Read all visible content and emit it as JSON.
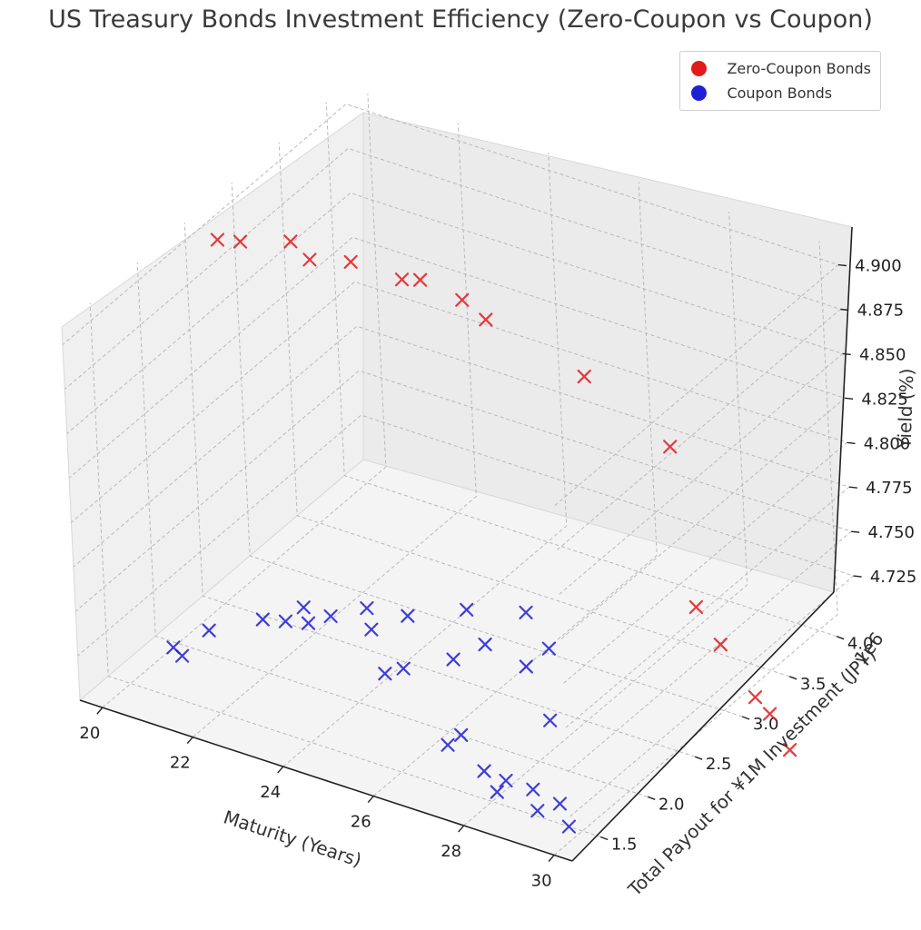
{
  "chart_data": {
    "type": "scatter",
    "title": "US Treasury Bonds Investment Efficiency (Zero-Coupon vs Coupon)",
    "xlabel": "Maturity (Years)",
    "ylabel": "Total Payout for ¥1M Investment (JPY)",
    "ylabel_scale_note": "1e6",
    "zlabel": "Yield (%)",
    "xlim": [
      19.5,
      30.4
    ],
    "ylim": [
      1.2,
      4.2
    ],
    "zlim": [
      4.7,
      4.91
    ],
    "x_ticks": [
      "20",
      "22",
      "24",
      "26",
      "28",
      "30"
    ],
    "y_ticks": [
      "1.5",
      "2.0",
      "2.5",
      "3.0",
      "3.5",
      "4.0"
    ],
    "z_ticks": [
      "4.725",
      "4.750",
      "4.775",
      "4.800",
      "4.825",
      "4.850",
      "4.875",
      "4.900"
    ],
    "grid": true,
    "legend": "top-right",
    "marker": "x",
    "series": [
      {
        "name": "Zero-Coupon Bonds",
        "color": "#e31a1c",
        "points": [
          {
            "x": 20.0,
            "y": 2.6,
            "z": 4.9
          },
          {
            "x": 20.4,
            "y": 2.65,
            "z": 4.9
          },
          {
            "x": 21.2,
            "y": 2.8,
            "z": 4.9
          },
          {
            "x": 21.5,
            "y": 2.85,
            "z": 4.89
          },
          {
            "x": 22.2,
            "y": 2.95,
            "z": 4.89
          },
          {
            "x": 23.0,
            "y": 3.1,
            "z": 4.88
          },
          {
            "x": 23.3,
            "y": 3.15,
            "z": 4.88
          },
          {
            "x": 24.0,
            "y": 3.25,
            "z": 4.87
          },
          {
            "x": 24.4,
            "y": 3.3,
            "z": 4.86
          },
          {
            "x": 26.0,
            "y": 3.55,
            "z": 4.83
          },
          {
            "x": 27.3,
            "y": 3.8,
            "z": 4.79
          },
          {
            "x": 27.6,
            "y": 3.85,
            "z": 4.7
          },
          {
            "x": 28.0,
            "y": 3.9,
            "z": 4.68
          },
          {
            "x": 28.5,
            "y": 4.0,
            "z": 4.65
          },
          {
            "x": 28.7,
            "y": 4.05,
            "z": 4.64
          },
          {
            "x": 29.0,
            "y": 4.1,
            "z": 4.62
          }
        ]
      },
      {
        "name": "Coupon Bonds",
        "color": "#1f1fd6",
        "points": [
          {
            "x": 20.0,
            "y": 1.95,
            "z": 4.7
          },
          {
            "x": 20.3,
            "y": 1.9,
            "z": 4.7
          },
          {
            "x": 20.6,
            "y": 2.05,
            "z": 4.71
          },
          {
            "x": 21.6,
            "y": 2.15,
            "z": 4.72
          },
          {
            "x": 22.0,
            "y": 2.2,
            "z": 4.72
          },
          {
            "x": 22.2,
            "y": 2.3,
            "z": 4.725
          },
          {
            "x": 22.4,
            "y": 2.25,
            "z": 4.72
          },
          {
            "x": 22.8,
            "y": 2.3,
            "z": 4.725
          },
          {
            "x": 23.4,
            "y": 2.4,
            "z": 4.73
          },
          {
            "x": 23.7,
            "y": 2.3,
            "z": 4.725
          },
          {
            "x": 24.2,
            "y": 2.45,
            "z": 4.73
          },
          {
            "x": 24.4,
            "y": 2.1,
            "z": 4.715
          },
          {
            "x": 24.6,
            "y": 2.2,
            "z": 4.715
          },
          {
            "x": 25.2,
            "y": 2.6,
            "z": 4.735
          },
          {
            "x": 25.4,
            "y": 2.35,
            "z": 4.72
          },
          {
            "x": 25.8,
            "y": 2.5,
            "z": 4.725
          },
          {
            "x": 26.2,
            "y": 2.75,
            "z": 4.735
          },
          {
            "x": 26.7,
            "y": 2.5,
            "z": 4.72
          },
          {
            "x": 26.9,
            "y": 2.65,
            "z": 4.725
          },
          {
            "x": 27.4,
            "y": 2.4,
            "z": 4.7
          },
          {
            "x": 26.4,
            "y": 1.8,
            "z": 4.705
          },
          {
            "x": 26.6,
            "y": 1.85,
            "z": 4.71
          },
          {
            "x": 27.3,
            "y": 1.75,
            "z": 4.7
          },
          {
            "x": 27.9,
            "y": 1.6,
            "z": 4.7
          },
          {
            "x": 28.0,
            "y": 1.65,
            "z": 4.705
          },
          {
            "x": 28.6,
            "y": 1.65,
            "z": 4.705
          },
          {
            "x": 28.9,
            "y": 1.55,
            "z": 4.7
          },
          {
            "x": 29.3,
            "y": 1.6,
            "z": 4.705
          },
          {
            "x": 29.7,
            "y": 1.5,
            "z": 4.7
          }
        ]
      }
    ]
  }
}
